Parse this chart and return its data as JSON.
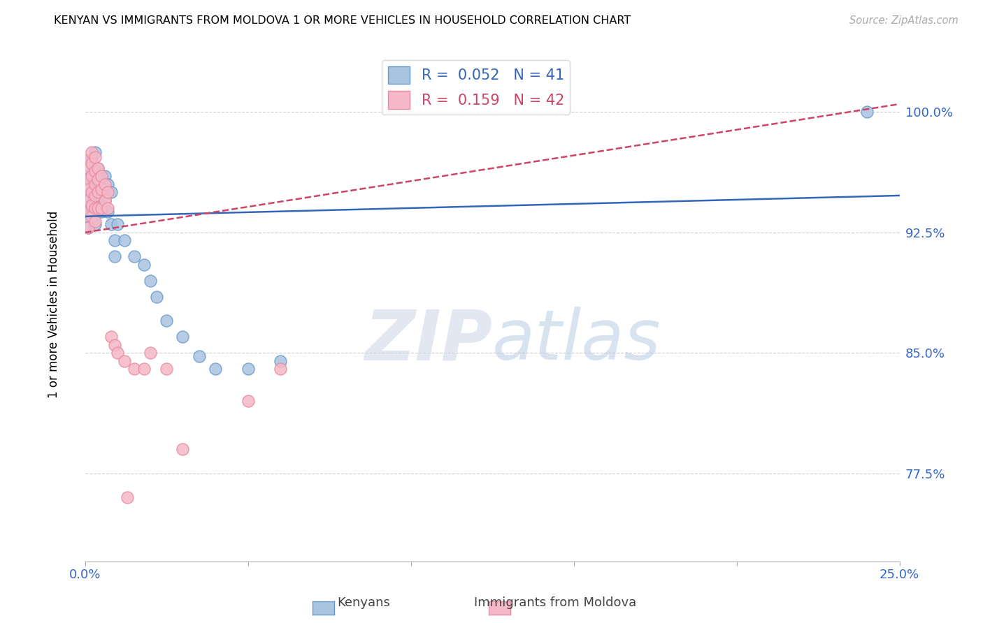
{
  "title": "KENYAN VS IMMIGRANTS FROM MOLDOVA 1 OR MORE VEHICLES IN HOUSEHOLD CORRELATION CHART",
  "source": "Source: ZipAtlas.com",
  "ylabel": "1 or more Vehicles in Household",
  "ytick_labels": [
    "100.0%",
    "92.5%",
    "85.0%",
    "77.5%"
  ],
  "ytick_values": [
    1.0,
    0.925,
    0.85,
    0.775
  ],
  "xlim": [
    0.0,
    0.25
  ],
  "ylim": [
    0.72,
    1.04
  ],
  "watermark_zip": "ZIP",
  "watermark_atlas": "atlas",
  "blue_R": 0.052,
  "blue_N": 41,
  "pink_R": 0.159,
  "pink_N": 42,
  "blue_scatter": [
    [
      0.001,
      0.958
    ],
    [
      0.001,
      0.945
    ],
    [
      0.001,
      0.935
    ],
    [
      0.001,
      0.928
    ],
    [
      0.002,
      0.97
    ],
    [
      0.002,
      0.962
    ],
    [
      0.002,
      0.95
    ],
    [
      0.002,
      0.94
    ],
    [
      0.003,
      0.975
    ],
    [
      0.003,
      0.96
    ],
    [
      0.003,
      0.955
    ],
    [
      0.003,
      0.948
    ],
    [
      0.003,
      0.938
    ],
    [
      0.003,
      0.93
    ],
    [
      0.004,
      0.965
    ],
    [
      0.004,
      0.952
    ],
    [
      0.004,
      0.94
    ],
    [
      0.005,
      0.958
    ],
    [
      0.005,
      0.948
    ],
    [
      0.005,
      0.938
    ],
    [
      0.006,
      0.96
    ],
    [
      0.006,
      0.945
    ],
    [
      0.007,
      0.955
    ],
    [
      0.007,
      0.938
    ],
    [
      0.008,
      0.95
    ],
    [
      0.008,
      0.93
    ],
    [
      0.009,
      0.92
    ],
    [
      0.009,
      0.91
    ],
    [
      0.01,
      0.93
    ],
    [
      0.012,
      0.92
    ],
    [
      0.015,
      0.91
    ],
    [
      0.018,
      0.905
    ],
    [
      0.02,
      0.895
    ],
    [
      0.022,
      0.885
    ],
    [
      0.025,
      0.87
    ],
    [
      0.03,
      0.86
    ],
    [
      0.035,
      0.848
    ],
    [
      0.04,
      0.84
    ],
    [
      0.05,
      0.84
    ],
    [
      0.06,
      0.845
    ],
    [
      0.24,
      1.0
    ]
  ],
  "pink_scatter": [
    [
      0.001,
      0.97
    ],
    [
      0.001,
      0.965
    ],
    [
      0.001,
      0.958
    ],
    [
      0.001,
      0.952
    ],
    [
      0.001,
      0.945
    ],
    [
      0.001,
      0.938
    ],
    [
      0.001,
      0.928
    ],
    [
      0.002,
      0.975
    ],
    [
      0.002,
      0.968
    ],
    [
      0.002,
      0.96
    ],
    [
      0.002,
      0.95
    ],
    [
      0.002,
      0.942
    ],
    [
      0.002,
      0.935
    ],
    [
      0.003,
      0.972
    ],
    [
      0.003,
      0.963
    ],
    [
      0.003,
      0.955
    ],
    [
      0.003,
      0.948
    ],
    [
      0.003,
      0.94
    ],
    [
      0.003,
      0.932
    ],
    [
      0.004,
      0.965
    ],
    [
      0.004,
      0.958
    ],
    [
      0.004,
      0.95
    ],
    [
      0.004,
      0.94
    ],
    [
      0.005,
      0.96
    ],
    [
      0.005,
      0.952
    ],
    [
      0.005,
      0.94
    ],
    [
      0.006,
      0.955
    ],
    [
      0.006,
      0.945
    ],
    [
      0.007,
      0.95
    ],
    [
      0.007,
      0.94
    ],
    [
      0.008,
      0.86
    ],
    [
      0.009,
      0.855
    ],
    [
      0.01,
      0.85
    ],
    [
      0.012,
      0.845
    ],
    [
      0.015,
      0.84
    ],
    [
      0.018,
      0.84
    ],
    [
      0.02,
      0.85
    ],
    [
      0.025,
      0.84
    ],
    [
      0.05,
      0.82
    ],
    [
      0.06,
      0.84
    ],
    [
      0.013,
      0.76
    ],
    [
      0.03,
      0.79
    ]
  ],
  "blue_line_x": [
    0.0,
    0.25
  ],
  "blue_line_y": [
    0.935,
    0.948
  ],
  "pink_line_x": [
    0.0,
    0.25
  ],
  "pink_line_y": [
    0.925,
    1.005
  ],
  "grid_color": "#cccccc",
  "blue_color": "#aac4e0",
  "pink_color": "#f5b8c8",
  "blue_edge": "#6699cc",
  "pink_edge": "#e88aa0",
  "blue_line_color": "#3366bb",
  "pink_line_color": "#cc4466"
}
